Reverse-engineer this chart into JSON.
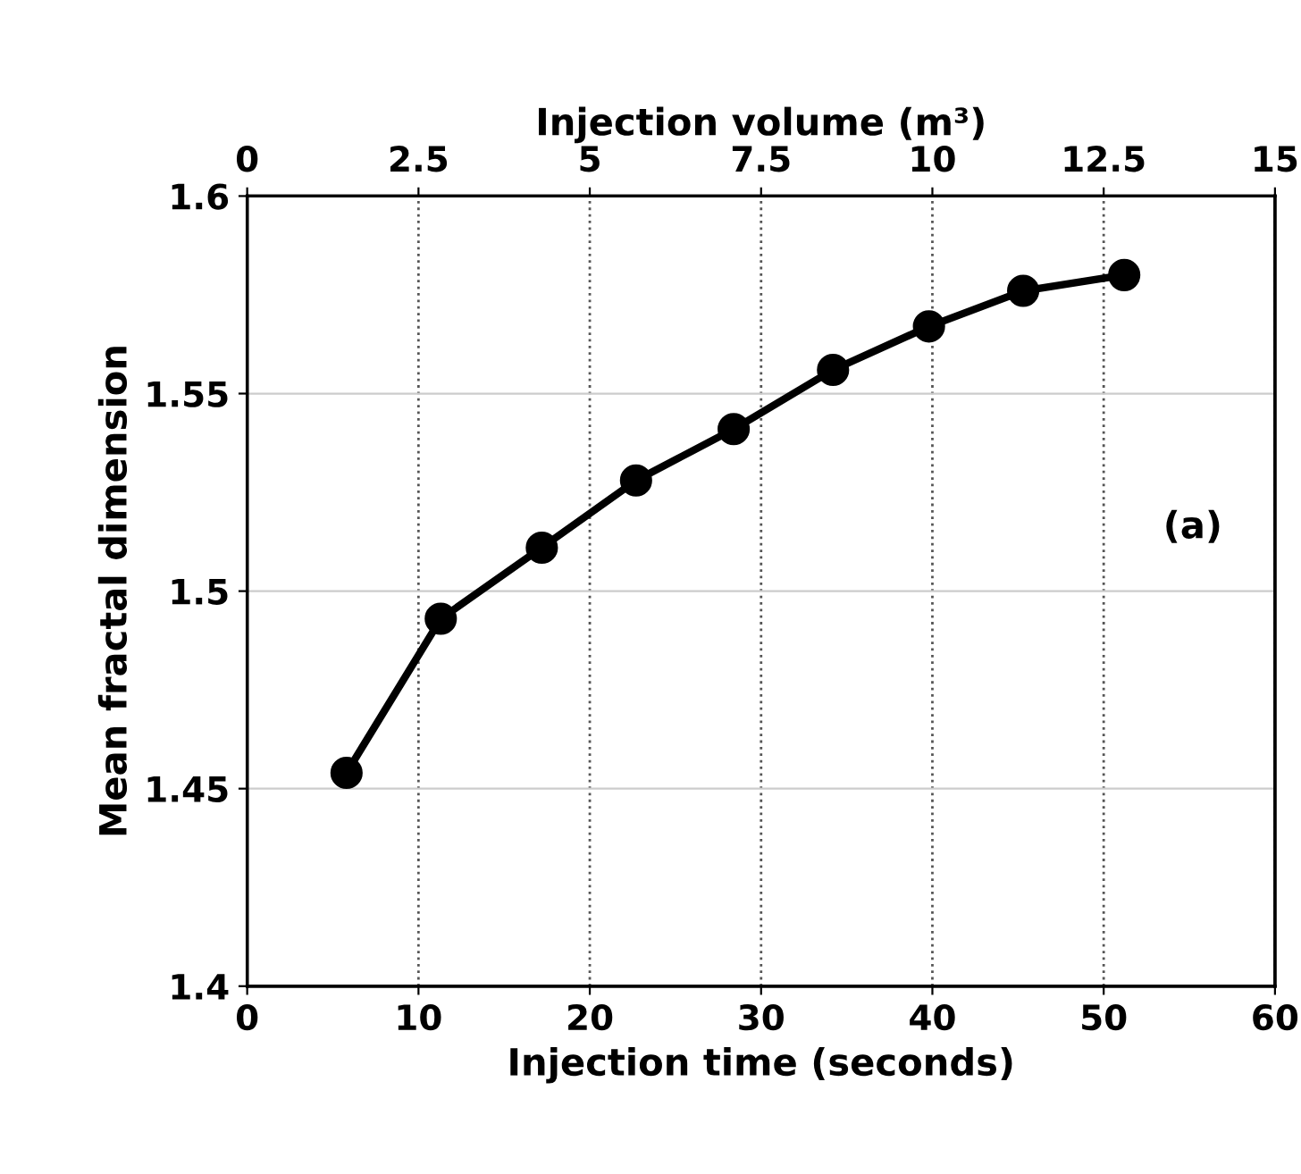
{
  "chart_data": {
    "type": "line",
    "xlabel": "Injection time (seconds)",
    "ylabel": "Mean fractal dimension",
    "x2label": "Injection volume (m³)",
    "x": [
      5.8,
      11.3,
      17.2,
      22.7,
      28.4,
      34.2,
      39.8,
      45.3,
      51.2
    ],
    "series": [
      {
        "color": "#000000",
        "values": [
          1.454,
          1.493,
          1.511,
          1.528,
          1.541,
          1.556,
          1.567,
          1.576,
          1.58
        ]
      }
    ],
    "xlim": [
      0,
      60
    ],
    "xticks": [
      0,
      10,
      20,
      30,
      40,
      50,
      60
    ],
    "x2lim": [
      0,
      15
    ],
    "x2ticks": [
      0,
      {
        "value": 2.5,
        "label": "2.5"
      },
      5,
      {
        "value": 7.5,
        "label": "7.5"
      },
      10,
      {
        "value": 12.5,
        "label": "12.5"
      },
      15
    ],
    "ylim": [
      1.4,
      1.6
    ],
    "yticks": [
      1.4,
      1.45,
      1.5,
      1.55,
      1.6
    ],
    "grid": true,
    "marker": "circle",
    "line_style": "solid",
    "annotations": [
      "(a)"
    ]
  }
}
